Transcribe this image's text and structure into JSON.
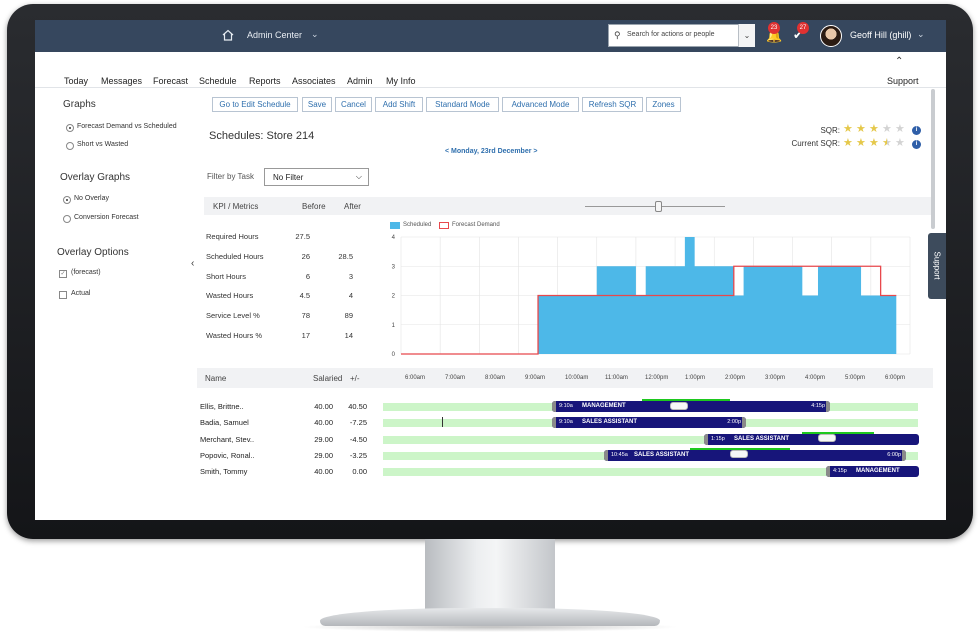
{
  "topbar": {
    "app_name": "Admin Center",
    "search_placeholder": "Search for actions or people",
    "notifications_count": "23",
    "tasks_count": "27",
    "user_name": "Geoff Hill (ghill)"
  },
  "menu": {
    "items": [
      "Today",
      "Messages",
      "Forecast",
      "Schedule",
      "Reports",
      "Associates",
      "Admin",
      "My Info"
    ],
    "support": "Support"
  },
  "left": {
    "graphs_title": "Graphs",
    "graph_options": [
      "Forecast Demand vs Scheduled",
      "Short vs Wasted"
    ],
    "overlay_graphs_title": "Overlay Graphs",
    "overlay_graph_options": [
      "No Overlay",
      "Conversion Forecast"
    ],
    "overlay_options_title": "Overlay Options",
    "overlay_checks": [
      "(forecast)",
      "Actual"
    ]
  },
  "toolbar": [
    "Go to Edit Schedule",
    "Save",
    "Cancel",
    "Add Shift",
    "Standard Mode",
    "Advanced Mode",
    "Refresh SQR",
    "Zones"
  ],
  "page_title": "Schedules: Store 214",
  "date_nav": "< Monday, 23rd December >",
  "sqr": {
    "label": "SQR:",
    "rating": 3,
    "current_label": "Current SQR:",
    "current_rating": 3.5,
    "max": 5
  },
  "filter": {
    "label": "Filter by Task",
    "value": "No Filter"
  },
  "kpi": {
    "headers": [
      "KPI / Metrics",
      "Before",
      "After"
    ],
    "rows": [
      {
        "label": "Required Hours",
        "before": "27.5",
        "after": ""
      },
      {
        "label": "Scheduled Hours",
        "before": "26",
        "after": "28.5"
      },
      {
        "label": "Short Hours",
        "before": "6",
        "after": "3"
      },
      {
        "label": "Wasted Hours",
        "before": "4.5",
        "after": "4"
      },
      {
        "label": "Service Level %",
        "before": "78",
        "after": "89"
      },
      {
        "label": "Wasted Hours %",
        "before": "17",
        "after": "14"
      }
    ]
  },
  "chart_data": {
    "type": "area",
    "legend": [
      "Scheduled",
      "Forecast Demand"
    ],
    "colors": {
      "scheduled": "#4db8e8",
      "forecast": "#e8484c"
    },
    "yticks": [
      "0",
      "1",
      "2",
      "3",
      "4"
    ],
    "ylim": [
      0,
      4
    ],
    "x_hours": [
      6,
      19
    ],
    "scheduled": [
      [
        6,
        0
      ],
      [
        9.5,
        0
      ],
      [
        9.5,
        2
      ],
      [
        11,
        2
      ],
      [
        11,
        3
      ],
      [
        12,
        3
      ],
      [
        12,
        2
      ],
      [
        12.25,
        2
      ],
      [
        12.25,
        3
      ],
      [
        13.25,
        3
      ],
      [
        13.25,
        4
      ],
      [
        13.5,
        4
      ],
      [
        13.5,
        3
      ],
      [
        14.5,
        3
      ],
      [
        14.5,
        2
      ],
      [
        14.75,
        2
      ],
      [
        14.75,
        3
      ],
      [
        16.25,
        3
      ],
      [
        16.25,
        2
      ],
      [
        16.65,
        2
      ],
      [
        16.65,
        3
      ],
      [
        17.75,
        3
      ],
      [
        17.75,
        2
      ],
      [
        18.65,
        2
      ],
      [
        18.65,
        0
      ]
    ],
    "forecast": [
      [
        6,
        0
      ],
      [
        9.5,
        0
      ],
      [
        9.5,
        2
      ],
      [
        14.5,
        2
      ],
      [
        14.5,
        3
      ],
      [
        18.25,
        3
      ],
      [
        18.25,
        2
      ],
      [
        18.65,
        2
      ]
    ]
  },
  "schedule": {
    "headers": [
      "Name",
      "Salaried",
      "+/-"
    ],
    "times": [
      "6:00am",
      "7:00am",
      "8:00am",
      "9:00am",
      "10:00am",
      "11:00am",
      "12:00pm",
      "1:00pm",
      "2:00pm",
      "3:00pm",
      "4:00pm",
      "5:00pm",
      "6:00pm"
    ],
    "rows": [
      {
        "name": "Ellis, Brittne..",
        "salaried": "40.00",
        "diff": "40.50",
        "start": "9:10a",
        "end": "4:15p",
        "role": "MANAGEMENT"
      },
      {
        "name": "Badia, Samuel",
        "salaried": "40.00",
        "diff": "-7.25",
        "start": "9:10a",
        "end": "2:00p",
        "role": "SALES ASSISTANT"
      },
      {
        "name": "Merchant, Stev..",
        "salaried": "29.00",
        "diff": "-4.50",
        "start": "1:15p",
        "end": "",
        "role": "SALES ASSISTANT"
      },
      {
        "name": "Popovic, Ronal..",
        "salaried": "29.00",
        "diff": "-3.25",
        "start": "10:45a",
        "end": "6:00p",
        "role": "SALES ASSISTANT"
      },
      {
        "name": "Smith, Tommy",
        "salaried": "40.00",
        "diff": "0.00",
        "start": "4:15p",
        "end": "",
        "role": "MANAGEMENT"
      }
    ]
  },
  "support_tab": "Support"
}
